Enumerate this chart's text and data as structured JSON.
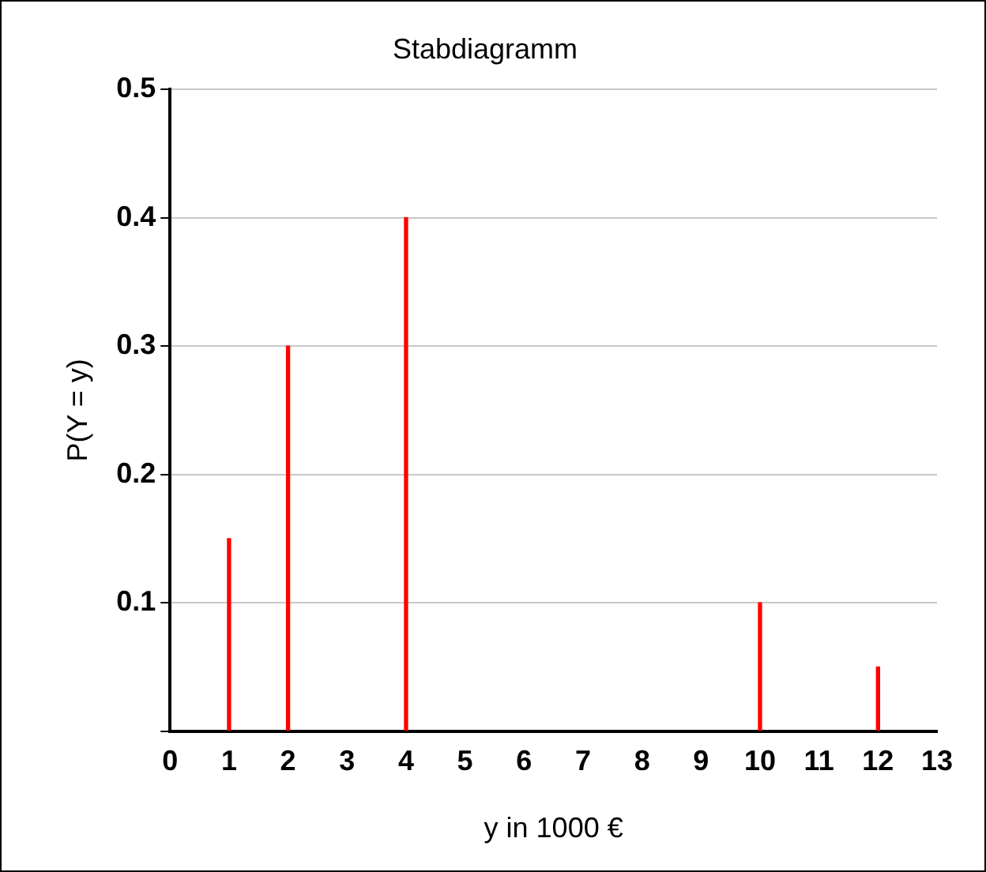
{
  "chart_data": {
    "type": "bar",
    "title": "Stabdiagramm",
    "xlabel": "y in 1000 €",
    "ylabel": "P(Y = y)",
    "x": [
      1,
      2,
      4,
      10,
      12
    ],
    "values": [
      0.15,
      0.3,
      0.4,
      0.1,
      0.05
    ],
    "color": "#ff0000",
    "xlim": [
      0,
      13
    ],
    "xticks": [
      0,
      1,
      2,
      3,
      4,
      5,
      6,
      7,
      8,
      9,
      10,
      11,
      12,
      13
    ],
    "ylim": [
      0,
      0.5
    ],
    "yticks": [
      {
        "value": 0,
        "label": null
      },
      0.1,
      0.2,
      0.3,
      0.4,
      0.5
    ],
    "grid": "y"
  }
}
